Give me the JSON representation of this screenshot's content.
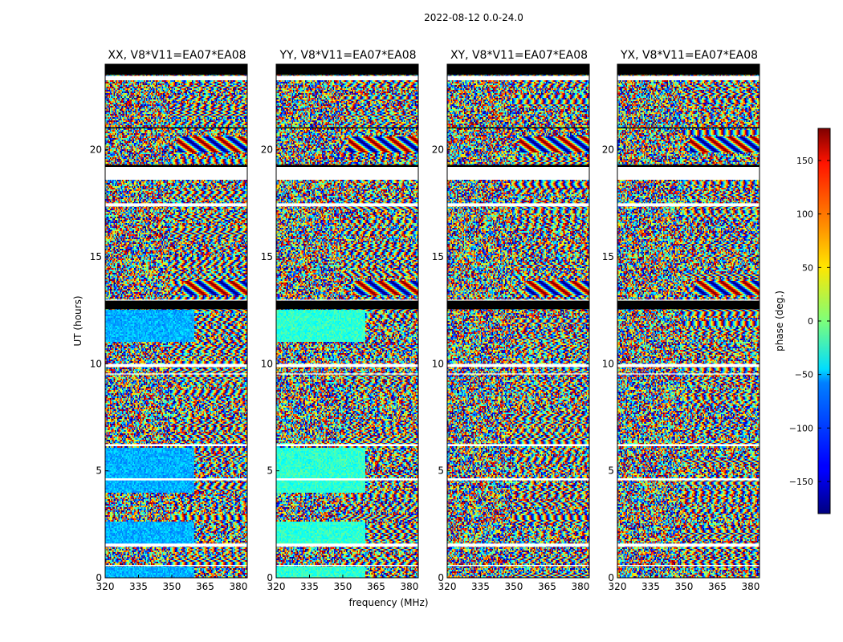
{
  "figure": {
    "suptitle": "2022-08-12 0.0-24.0"
  },
  "chart_data": {
    "type": "heatmap",
    "title": "2022-08-12 0.0-24.0",
    "xlabel": "frequency (MHz)",
    "ylabel": "UT (hours)",
    "xlim": [
      320,
      384
    ],
    "ylim": [
      0,
      24
    ],
    "x_ticks": [
      320,
      335,
      350,
      365,
      380
    ],
    "y_ticks": [
      0,
      5,
      10,
      15,
      20
    ],
    "panels": [
      {
        "title": "XX, V8*V11=EA07*EA08",
        "colored_low_hours": true
      },
      {
        "title": "YY, V8*V11=EA07*EA08",
        "colored_low_hours": true
      },
      {
        "title": "XY, V8*V11=EA07*EA08",
        "colored_low_hours": false
      },
      {
        "title": "YX, V8*V11=EA07*EA08",
        "colored_low_hours": false
      }
    ],
    "colorbar": {
      "label": "phase (deg.)",
      "range": [
        -180,
        180
      ],
      "ticks": [
        150,
        100,
        50,
        0,
        -50,
        -100,
        -150
      ],
      "tick_labels": [
        "150",
        "100",
        "50",
        "0",
        "−50",
        "−100",
        "−150"
      ],
      "colormap": "jet"
    },
    "gap_bands_hours": [
      [
        23.25,
        23.45
      ],
      [
        18.6,
        19.2
      ],
      [
        17.35,
        17.5
      ],
      [
        12.95,
        13.0
      ],
      [
        9.85,
        10.0
      ],
      [
        9.5,
        9.55
      ],
      [
        6.15,
        6.25
      ],
      [
        4.55,
        4.65
      ],
      [
        1.45,
        1.6
      ],
      [
        0.55,
        0.6
      ]
    ],
    "flagged_black_bands_hours": [
      [
        23.5,
        24.0
      ],
      [
        12.55,
        12.95
      ],
      [
        19.2,
        19.3
      ],
      [
        21.0,
        21.05
      ]
    ]
  }
}
